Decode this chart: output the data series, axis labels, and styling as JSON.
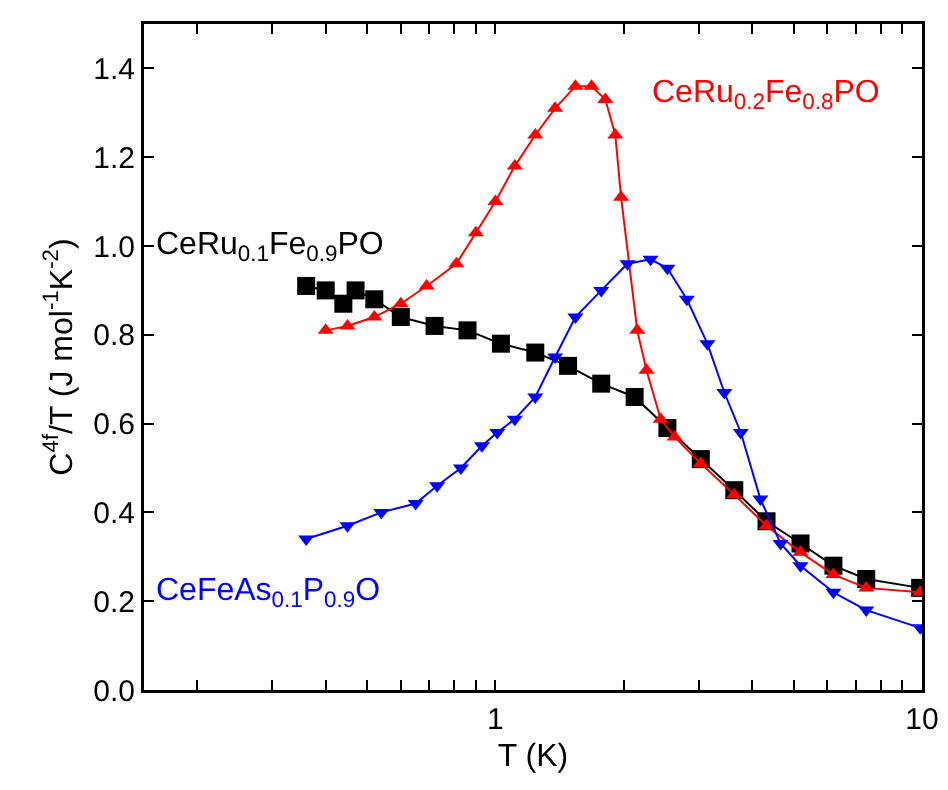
{
  "chart_data": {
    "type": "line",
    "xlabel": "T (K)",
    "ylabel": "C$^{4f}$/T (J mol$^{-1}$K$^{-2}$)",
    "log": "x",
    "xlim": [
      0.15,
      10
    ],
    "xticks": [
      {
        "value": 0.2,
        "label": null
      },
      {
        "value": 0.3,
        "label": null
      },
      {
        "value": 0.4,
        "label": null
      },
      {
        "value": 0.5,
        "label": null
      },
      {
        "value": 0.6,
        "label": null
      },
      {
        "value": 0.7,
        "label": null
      },
      {
        "value": 0.8,
        "label": null
      },
      {
        "value": 0.9,
        "label": null
      },
      1,
      {
        "value": 2,
        "label": null
      },
      {
        "value": 3,
        "label": null
      },
      {
        "value": 4,
        "label": null
      },
      {
        "value": 5,
        "label": null
      },
      {
        "value": 6,
        "label": null
      },
      {
        "value": 7,
        "label": null
      },
      {
        "value": 8,
        "label": null
      },
      {
        "value": 9,
        "label": null
      },
      10
    ],
    "ylim": [
      0,
      1.5
    ],
    "yticks": [
      {
        "value": 0,
        "label": "0.0"
      },
      0.2,
      0.4,
      0.6,
      0.8,
      {
        "value": 1,
        "label": "1.0"
      },
      1.2,
      1.4
    ],
    "grid": false,
    "legend": false,
    "line_style": "solid",
    "series": [
      {
        "name": "CeRu$_{0.1}$Fe$_{0.9}$PO",
        "color": "#000000",
        "marker": "square",
        "x": [
          0.36,
          0.4,
          0.44,
          0.47,
          0.52,
          0.6,
          0.72,
          0.86,
          1.03,
          1.24,
          1.48,
          1.77,
          2.12,
          2.53,
          3.03,
          3.63,
          4.32,
          5.19,
          6.2,
          7.4,
          9.9
        ],
        "values": [
          0.91,
          0.9,
          0.87,
          0.9,
          0.88,
          0.84,
          0.82,
          0.81,
          0.78,
          0.76,
          0.73,
          0.69,
          0.66,
          0.59,
          0.52,
          0.45,
          0.38,
          0.33,
          0.28,
          0.25,
          0.23
        ]
      },
      {
        "name": "CeRu$_{0.2}$Fe$_{0.8}$PO",
        "color": "#ff0000",
        "marker": "triangle",
        "x": [
          0.4,
          0.45,
          0.52,
          0.6,
          0.69,
          0.81,
          0.9,
          1.0,
          1.11,
          1.24,
          1.38,
          1.54,
          1.68,
          1.81,
          1.91,
          1.97,
          2.15,
          2.26,
          2.44,
          2.63,
          3.03,
          3.63,
          4.32,
          5.19,
          6.2,
          7.4,
          9.9
        ],
        "values": [
          0.81,
          0.82,
          0.84,
          0.87,
          0.91,
          0.96,
          1.03,
          1.1,
          1.18,
          1.25,
          1.31,
          1.36,
          1.36,
          1.33,
          1.25,
          1.11,
          0.81,
          0.72,
          0.61,
          0.57,
          0.51,
          0.44,
          0.37,
          0.31,
          0.26,
          0.23,
          0.22
        ]
      },
      {
        "name": "CeFeAs$_{0.1}$P$_{0.9}$O",
        "color": "#0000ff",
        "marker": "triangle-down",
        "x": [
          0.36,
          0.45,
          0.54,
          0.65,
          0.73,
          0.83,
          0.93,
          1.01,
          1.11,
          1.24,
          1.38,
          1.54,
          1.77,
          2.04,
          2.31,
          2.53,
          2.81,
          3.14,
          3.44,
          3.76,
          4.18,
          4.66,
          5.19,
          6.2,
          7.4,
          9.9
        ],
        "values": [
          0.34,
          0.37,
          0.4,
          0.42,
          0.46,
          0.5,
          0.55,
          0.58,
          0.61,
          0.66,
          0.75,
          0.84,
          0.9,
          0.96,
          0.97,
          0.95,
          0.88,
          0.78,
          0.67,
          0.58,
          0.43,
          0.33,
          0.28,
          0.22,
          0.18,
          0.14
        ]
      }
    ]
  }
}
